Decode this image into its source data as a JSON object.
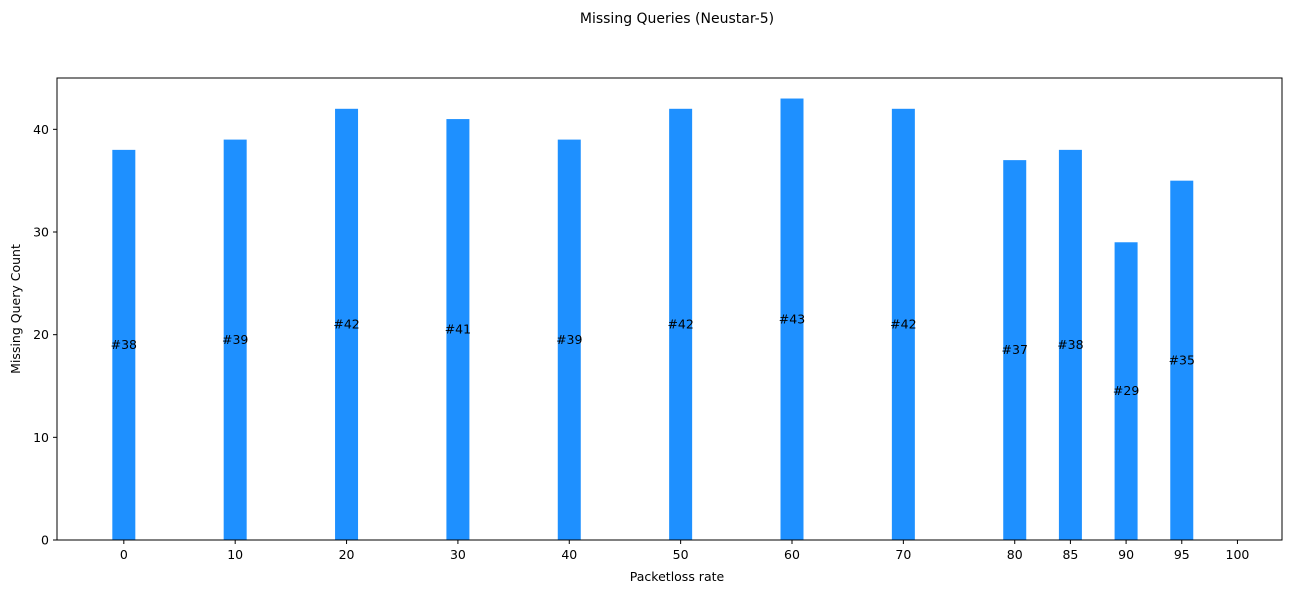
{
  "chart_data": {
    "type": "bar",
    "title": "Missing Queries (Neustar-5)",
    "xlabel": "Packetloss rate",
    "ylabel": "Missing Query Count",
    "x": [
      0,
      10,
      20,
      30,
      40,
      50,
      60,
      70,
      80,
      85,
      90,
      95
    ],
    "values": [
      38,
      39,
      42,
      41,
      39,
      42,
      43,
      42,
      37,
      38,
      29,
      35
    ],
    "data_labels": [
      "#38",
      "#39",
      "#42",
      "#41",
      "#39",
      "#42",
      "#43",
      "#42",
      "#37",
      "#38",
      "#29",
      "#35"
    ],
    "xticks": [
      0,
      10,
      20,
      30,
      40,
      50,
      60,
      70,
      80,
      85,
      90,
      95,
      100
    ],
    "xtick_labels": [
      "0",
      "10",
      "20",
      "30",
      "40",
      "50",
      "60",
      "70",
      "80",
      "85",
      "90",
      "95",
      "100"
    ],
    "yticks": [
      0,
      10,
      20,
      30,
      40
    ],
    "ytick_labels": [
      "0",
      "10",
      "20",
      "30",
      "40"
    ],
    "xlim": [
      -6,
      104
    ],
    "ylim": [
      0,
      45
    ],
    "bar_color": "#1e90ff",
    "grid": false,
    "legend": "none"
  }
}
